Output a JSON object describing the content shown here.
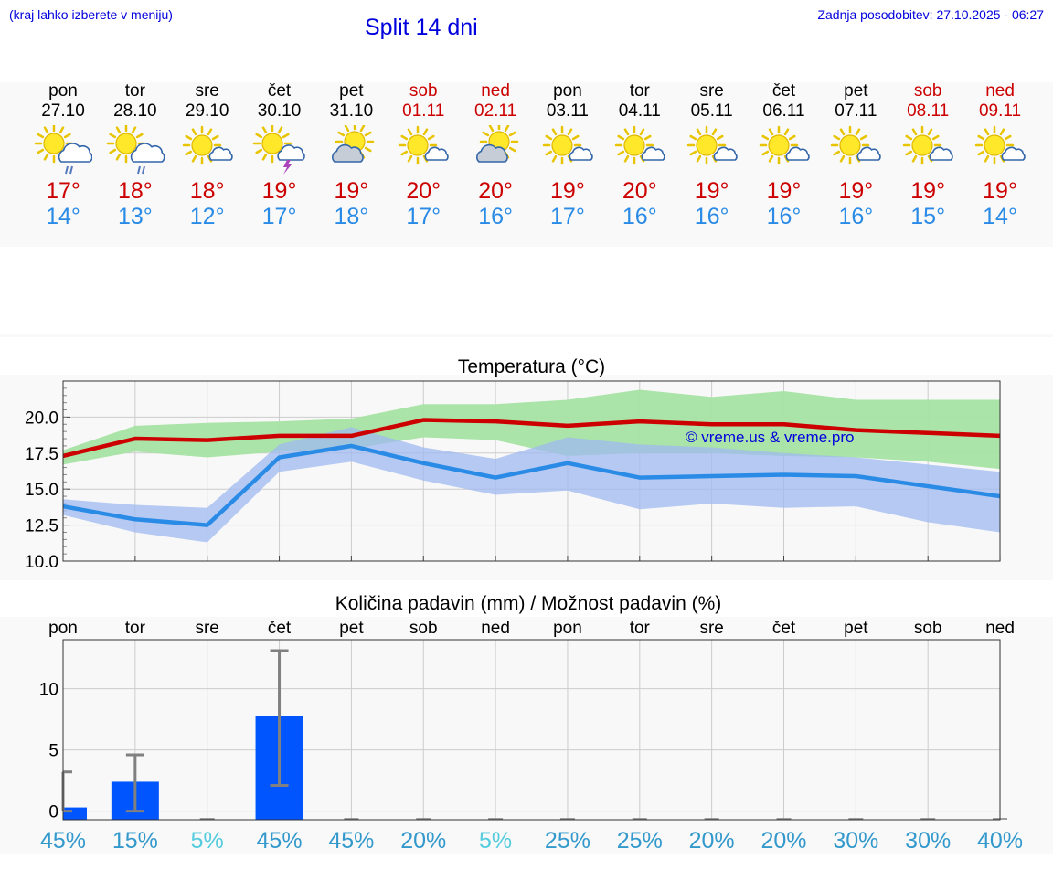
{
  "header": {
    "hint": "(kraj lahko izberete v meniju)",
    "title": "Split 14 dni",
    "updated": "Zadnja posodobitev: 27.10.2025 - 06:27"
  },
  "colors": {
    "tmax": "#cc0000",
    "tmin": "#2a8be6",
    "tmax_band": "#a6e3a3",
    "tmin_band": "#9fbaf0",
    "precip_bar": "#0055ff",
    "errorbar": "#808080",
    "pct_normal": "#3399cc",
    "pct_low": "#55ccdd",
    "weekend": "#cc0000",
    "title_blue": "#0000dd"
  },
  "days": [
    {
      "name": "pon",
      "date": "27.10",
      "weekend": false,
      "icon": "sun-cloud-rain-icon",
      "tmax": "17°",
      "tmin": "14°"
    },
    {
      "name": "tor",
      "date": "28.10",
      "weekend": false,
      "icon": "sun-cloud-rain-icon",
      "tmax": "18°",
      "tmin": "13°"
    },
    {
      "name": "sre",
      "date": "29.10",
      "weekend": false,
      "icon": "sun-small-cloud-icon",
      "tmax": "18°",
      "tmin": "12°"
    },
    {
      "name": "čet",
      "date": "30.10",
      "weekend": false,
      "icon": "sun-cloud-thunder-icon",
      "tmax": "19°",
      "tmin": "17°"
    },
    {
      "name": "pet",
      "date": "31.10",
      "weekend": false,
      "icon": "sun-behind-cloud-icon",
      "tmax": "19°",
      "tmin": "18°"
    },
    {
      "name": "sob",
      "date": "01.11",
      "weekend": true,
      "icon": "sun-small-cloud-icon",
      "tmax": "20°",
      "tmin": "17°"
    },
    {
      "name": "ned",
      "date": "02.11",
      "weekend": true,
      "icon": "sun-behind-cloud-icon",
      "tmax": "20°",
      "tmin": "16°"
    },
    {
      "name": "pon",
      "date": "03.11",
      "weekend": false,
      "icon": "sun-small-cloud-icon",
      "tmax": "19°",
      "tmin": "17°"
    },
    {
      "name": "tor",
      "date": "04.11",
      "weekend": false,
      "icon": "sun-small-cloud-icon",
      "tmax": "20°",
      "tmin": "16°"
    },
    {
      "name": "sre",
      "date": "05.11",
      "weekend": false,
      "icon": "sun-small-cloud-icon",
      "tmax": "19°",
      "tmin": "16°"
    },
    {
      "name": "čet",
      "date": "06.11",
      "weekend": false,
      "icon": "sun-small-cloud-icon",
      "tmax": "19°",
      "tmin": "16°"
    },
    {
      "name": "pet",
      "date": "07.11",
      "weekend": false,
      "icon": "sun-small-cloud-icon",
      "tmax": "19°",
      "tmin": "16°"
    },
    {
      "name": "sob",
      "date": "08.11",
      "weekend": true,
      "icon": "sun-small-cloud-icon",
      "tmax": "19°",
      "tmin": "15°"
    },
    {
      "name": "ned",
      "date": "09.11",
      "weekend": true,
      "icon": "sun-small-cloud-icon",
      "tmax": "19°",
      "tmin": "14°"
    }
  ],
  "chart_data": [
    {
      "type": "line",
      "title": "Temperatura (°C)",
      "x": [
        "27.10",
        "28.10",
        "29.10",
        "30.10",
        "31.10",
        "01.11",
        "02.11",
        "03.11",
        "04.11",
        "05.11",
        "06.11",
        "07.11",
        "08.11",
        "09.11"
      ],
      "ylim": [
        10,
        22.5
      ],
      "yticks": [
        "10.0",
        "12.5",
        "15.0",
        "17.5",
        "20.0"
      ],
      "grid": true,
      "watermark": "© vreme.us & vreme.pro",
      "series": [
        {
          "role": "tmax",
          "values": [
            17.3,
            18.5,
            18.4,
            18.7,
            18.7,
            19.8,
            19.7,
            19.4,
            19.7,
            19.5,
            19.5,
            19.1,
            18.9,
            18.7
          ],
          "band_high": [
            17.7,
            19.4,
            19.6,
            19.7,
            19.9,
            20.9,
            20.9,
            21.2,
            21.9,
            21.4,
            21.8,
            21.2,
            21.2,
            21.2
          ],
          "band_low": [
            16.7,
            17.6,
            17.2,
            17.6,
            17.8,
            18.6,
            18.4,
            17.3,
            17.5,
            17.5,
            17.3,
            17.2,
            16.9,
            16.4
          ]
        },
        {
          "role": "tmin",
          "values": [
            13.8,
            12.9,
            12.5,
            17.2,
            18.0,
            16.8,
            15.8,
            16.8,
            15.8,
            15.9,
            16.0,
            15.9,
            15.2,
            14.5
          ],
          "band_high": [
            14.3,
            13.9,
            13.7,
            18.1,
            19.3,
            17.9,
            17.1,
            18.6,
            18.1,
            17.9,
            17.5,
            17.2,
            16.7,
            16.2
          ],
          "band_low": [
            13.2,
            12.0,
            11.3,
            16.2,
            16.9,
            15.6,
            14.6,
            14.9,
            13.6,
            14.0,
            13.7,
            13.8,
            12.7,
            12.0
          ]
        }
      ]
    },
    {
      "type": "bar",
      "title": "Količina padavin (mm) / Možnost padavin (%)",
      "categories": [
        "pon",
        "tor",
        "sre",
        "čet",
        "pet",
        "sob",
        "ned",
        "pon",
        "tor",
        "sre",
        "čet",
        "pet",
        "sob",
        "ned"
      ],
      "values": [
        0.3,
        2.4,
        0,
        7.8,
        0,
        0,
        0,
        0,
        0,
        0,
        0,
        0,
        0,
        0
      ],
      "err_low": [
        0,
        0,
        0,
        2.1,
        0,
        0,
        0,
        0,
        0,
        0,
        0,
        0,
        0,
        0
      ],
      "err_high": [
        3.2,
        4.6,
        0,
        13.1,
        0,
        0,
        0,
        0,
        0,
        0,
        0,
        0,
        0,
        0
      ],
      "ylim": [
        -0.7,
        14
      ],
      "yticks": [
        "0",
        "5",
        "10"
      ],
      "grid": true,
      "chance": [
        "45%",
        "15%",
        "5%",
        "45%",
        "45%",
        "20%",
        "5%",
        "25%",
        "25%",
        "20%",
        "20%",
        "30%",
        "30%",
        "40%"
      ],
      "chance_values": [
        45,
        15,
        5,
        45,
        45,
        20,
        5,
        25,
        25,
        20,
        20,
        30,
        30,
        40
      ]
    }
  ]
}
